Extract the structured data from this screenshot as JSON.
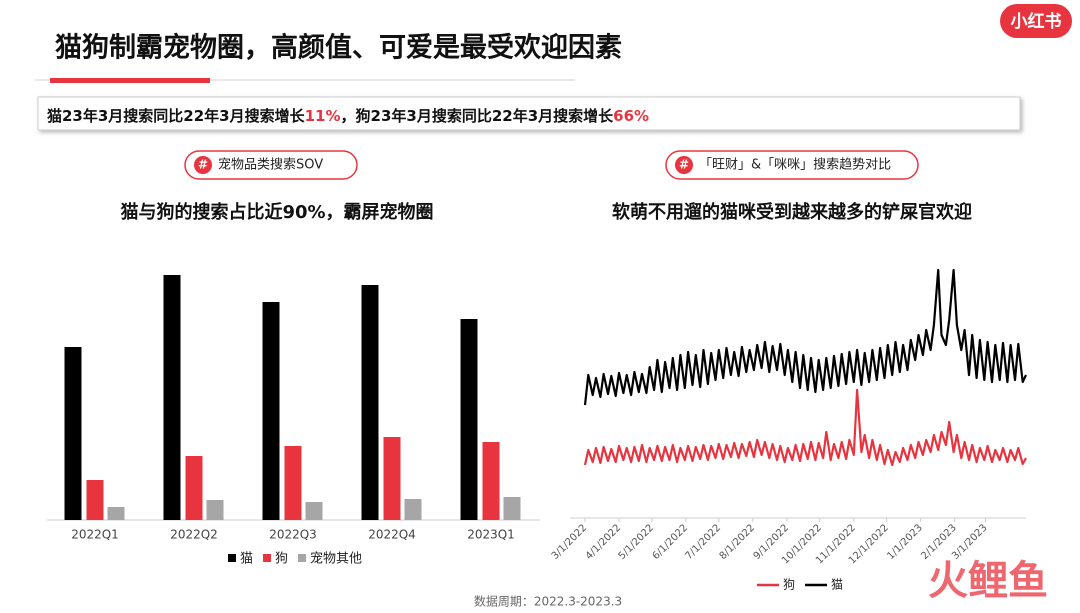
{
  "header": {
    "title": "猫狗制霸宠物圈，高颜值、可爱是最受欢迎因素",
    "brand": "小红书"
  },
  "summary": {
    "parts": [
      "猫23年3月搜索同比22年3月搜索增长",
      "11%",
      "，狗23年3月搜索同比22年3月搜索增长",
      "66%"
    ]
  },
  "chart_data": [
    {
      "type": "bar",
      "badge": "宠物品类搜索SOV",
      "title": "猫与狗的搜索占比近90%，霸屏宠物圈",
      "categories": [
        "2022Q1",
        "2022Q2",
        "2022Q3",
        "2022Q4",
        "2023Q1"
      ],
      "series": [
        {
          "name": "猫",
          "color": "#000000",
          "values": [
            173,
            245,
            218,
            235,
            201
          ]
        },
        {
          "name": "狗",
          "color": "#e8343f",
          "values": [
            40,
            64,
            74,
            83,
            78
          ]
        },
        {
          "name": "宠物其他",
          "color": "#a6a6a6",
          "values": [
            13,
            20,
            18,
            21,
            23
          ]
        }
      ],
      "ylim": [
        0,
        250
      ],
      "legend": "bottom"
    },
    {
      "type": "line",
      "badge": "「旺财」&「咪咪」搜索趋势对比",
      "title": "软萌不用遛的猫咪受到越来越多的铲屎官欢迎",
      "x": [
        0,
        3,
        7,
        10,
        14,
        17,
        21,
        24,
        28,
        31,
        35,
        38,
        42,
        45,
        49,
        52,
        56,
        59,
        63,
        66,
        70,
        73,
        77,
        80,
        84,
        87,
        91,
        94,
        98,
        101,
        105,
        108,
        112,
        115,
        119,
        122,
        126,
        129,
        133,
        136,
        140,
        143,
        147,
        150,
        154,
        157,
        161,
        164,
        168,
        171,
        175,
        178,
        182,
        185,
        189,
        192,
        196,
        199,
        203,
        206,
        210,
        213,
        217,
        220,
        224,
        227,
        231,
        234,
        238,
        241,
        245,
        248,
        252,
        255,
        259,
        262,
        266,
        269,
        273,
        276,
        280,
        283,
        287,
        290,
        294,
        297,
        301,
        304,
        308,
        311,
        315,
        318,
        322,
        325,
        329,
        332,
        336,
        339,
        343,
        346,
        350,
        353,
        357,
        360,
        364,
        367,
        371,
        374,
        378,
        381,
        385,
        388,
        392,
        395,
        399,
        402
      ],
      "series": [
        {
          "name": "狗",
          "color": "#e8343f",
          "values": [
            35,
            50,
            38,
            52,
            37,
            53,
            39,
            51,
            38,
            54,
            40,
            52,
            38,
            53,
            39,
            55,
            38,
            52,
            40,
            54,
            39,
            53,
            40,
            55,
            38,
            52,
            40,
            54,
            39,
            53,
            41,
            55,
            40,
            54,
            42,
            56,
            41,
            55,
            43,
            57,
            42,
            56,
            44,
            58,
            43,
            60,
            45,
            58,
            42,
            56,
            40,
            54,
            38,
            52,
            40,
            55,
            39,
            56,
            41,
            58,
            40,
            57,
            42,
            68,
            40,
            56,
            42,
            58,
            41,
            60,
            45,
            110,
            48,
            65,
            42,
            60,
            40,
            55,
            36,
            50,
            35,
            48,
            38,
            52,
            40,
            55,
            42,
            58,
            45,
            60,
            48,
            65,
            50,
            68,
            55,
            78,
            48,
            65,
            42,
            58,
            40,
            55,
            38,
            52,
            40,
            54,
            38,
            50,
            40,
            52,
            38,
            50,
            40,
            52,
            36,
            42
          ]
        },
        {
          "name": "猫",
          "color": "#000000",
          "values": [
            95,
            125,
            105,
            122,
            103,
            126,
            106,
            124,
            104,
            127,
            107,
            125,
            105,
            128,
            108,
            126,
            107,
            133,
            110,
            140,
            108,
            138,
            112,
            142,
            110,
            145,
            112,
            148,
            115,
            145,
            113,
            150,
            116,
            147,
            120,
            150,
            122,
            152,
            125,
            148,
            124,
            153,
            128,
            150,
            130,
            155,
            132,
            158,
            128,
            154,
            130,
            156,
            125,
            150,
            118,
            148,
            112,
            145,
            110,
            142,
            108,
            140,
            110,
            142,
            112,
            144,
            114,
            146,
            116,
            148,
            118,
            150,
            115,
            147,
            118,
            150,
            120,
            152,
            122,
            155,
            125,
            158,
            128,
            155,
            130,
            160,
            140,
            165,
            145,
            170,
            150,
            175,
            230,
            165,
            155,
            180,
            230,
            175,
            150,
            170,
            125,
            165,
            122,
            160,
            120,
            158,
            118,
            155,
            120,
            157,
            118,
            155,
            120,
            156,
            118,
            125
          ]
        }
      ],
      "xlim": [
        0,
        402
      ],
      "ylim": [
        0,
        240
      ],
      "xticks": [
        {
          "value": 0,
          "label": "3/1/2022"
        },
        {
          "value": 31,
          "label": "4/1/2022"
        },
        {
          "value": 61,
          "label": "5/1/2022"
        },
        {
          "value": 92,
          "label": "6/1/2022"
        },
        {
          "value": 122,
          "label": "7/1/2022"
        },
        {
          "value": 153,
          "label": "8/1/2022"
        },
        {
          "value": 184,
          "label": "9/1/2022"
        },
        {
          "value": 214,
          "label": "10/1/2022"
        },
        {
          "value": 245,
          "label": "11/1/2022"
        },
        {
          "value": 275,
          "label": "12/1/2022"
        },
        {
          "value": 306,
          "label": "1/1/2023"
        },
        {
          "value": 337,
          "label": "2/1/2023"
        },
        {
          "value": 365,
          "label": "3/1/2023"
        }
      ],
      "legend": "bottom"
    }
  ],
  "footer": "数据周期：2022.3-2023.3",
  "watermark": "火鲤鱼"
}
